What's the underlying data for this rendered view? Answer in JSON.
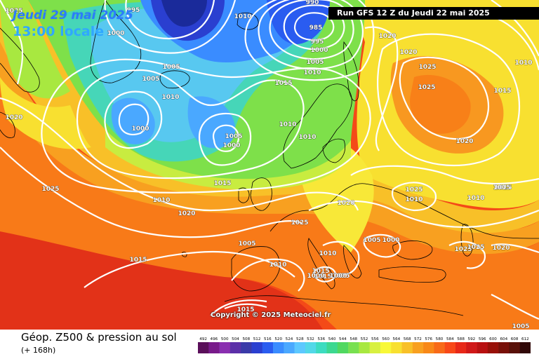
{
  "header": {
    "date": "Jeudi 29 mai 2025",
    "time": "13:00 locale",
    "run": "Run GFS 12 Z du Jeudi 22 mai 2025"
  },
  "copyright": "Copyright © 2025 Meteociel.fr",
  "footer": {
    "title": "Géop. Z500 & pression au sol",
    "subtitle": "(+ 168h)"
  },
  "legend": {
    "labels": [
      "492",
      "496",
      "500",
      "504",
      "508",
      "512",
      "516",
      "520",
      "524",
      "528",
      "532",
      "536",
      "540",
      "544",
      "548",
      "552",
      "556",
      "560",
      "564",
      "568",
      "572",
      "576",
      "580",
      "584",
      "588",
      "592",
      "596",
      "600",
      "604",
      "608",
      "612"
    ],
    "colors": [
      "#5a0f5a",
      "#781a8a",
      "#8a2fb0",
      "#5b2fa8",
      "#3a3aa8",
      "#2a3fd0",
      "#2a5cf0",
      "#3a8cff",
      "#4aa8ff",
      "#5cc8ff",
      "#52d8e8",
      "#3cdcc0",
      "#3cd890",
      "#50d860",
      "#78e050",
      "#a8e840",
      "#d8f040",
      "#f8f838",
      "#f8e030",
      "#f8c028",
      "#f8a020",
      "#f88818",
      "#f86a18",
      "#f84818",
      "#e82818",
      "#d01818",
      "#b81010",
      "#981008",
      "#781008",
      "#581008",
      "#300808"
    ]
  },
  "isobar_labels": [
    {
      "text": "1025"
    },
    {
      "text": "995"
    },
    {
      "text": "1010"
    },
    {
      "text": "990"
    },
    {
      "text": "985"
    },
    {
      "text": "995"
    },
    {
      "text": "1000"
    },
    {
      "text": "1005"
    },
    {
      "text": "1010"
    },
    {
      "text": "1020"
    },
    {
      "text": "1020"
    },
    {
      "text": "1025"
    },
    {
      "text": "1025"
    },
    {
      "text": "1015"
    },
    {
      "text": "1010"
    },
    {
      "text": "1000"
    },
    {
      "text": "1005"
    },
    {
      "text": "1005"
    },
    {
      "text": "1010"
    },
    {
      "text": "1000"
    },
    {
      "text": "1015"
    },
    {
      "text": "1020"
    },
    {
      "text": "1005"
    },
    {
      "text": "1000"
    },
    {
      "text": "1010"
    },
    {
      "text": "1010"
    },
    {
      "text": "1020"
    },
    {
      "text": "1015"
    },
    {
      "text": "1025"
    },
    {
      "text": "1010"
    },
    {
      "text": "1020"
    },
    {
      "text": "1025"
    },
    {
      "text": "1020"
    },
    {
      "text": "1025"
    },
    {
      "text": "1010"
    },
    {
      "text": "1010"
    },
    {
      "text": "1005"
    },
    {
      "text": "1015"
    },
    {
      "text": "1010"
    },
    {
      "text": "1010"
    },
    {
      "text": "1005"
    },
    {
      "text": "1000"
    },
    {
      "text": "1025"
    },
    {
      "text": "1025"
    },
    {
      "text": "1020"
    },
    {
      "text": "1015"
    },
    {
      "text": "1015"
    },
    {
      "text": "1015"
    },
    {
      "text": "1015"
    },
    {
      "text": "1005"
    },
    {
      "text": "1000"
    },
    {
      "text": "1000"
    },
    {
      "text": "1015"
    },
    {
      "text": "1015"
    }
  ],
  "colors": {
    "background": "#f84818",
    "isobar": "#ffffff",
    "coastline": "#000000",
    "run_box": "#000000"
  }
}
